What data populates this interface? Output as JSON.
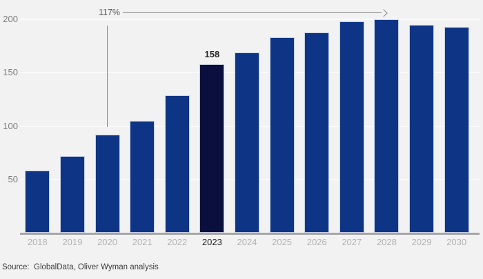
{
  "chart_data": {
    "type": "bar",
    "categories": [
      "2018",
      "2019",
      "2020",
      "2021",
      "2022",
      "2023",
      "2024",
      "2025",
      "2026",
      "2027",
      "2028",
      "2029",
      "2030"
    ],
    "values": [
      58,
      72,
      92,
      105,
      129,
      158,
      169,
      183,
      188,
      198,
      200,
      195,
      193
    ],
    "highlight": {
      "category": "2023",
      "value_label": "158"
    },
    "annotation": {
      "label": "117%",
      "from_category": "2020",
      "to_category": "2028"
    },
    "ylim": [
      0,
      200
    ],
    "yticks": [
      50,
      100,
      150,
      200
    ],
    "grid": true,
    "legend_position": "none",
    "title": "",
    "xlabel": "",
    "ylabel": ""
  },
  "source": {
    "label": "Source:",
    "text": "GlobalData, Oliver Wyman analysis"
  },
  "colors": {
    "background": "#f2f2f2",
    "bar": "#0e3585",
    "bar_highlight": "#0a0f3d",
    "gridline": "#fafafa",
    "axis_line": "#a6a6a6",
    "x_tick_label": "#b2b2b2",
    "x_tick_label_highlight": "#1f1f1f",
    "y_tick_label": "#7d7d7d",
    "annotation_text": "#555555",
    "annotation_line": "#8a8a8a",
    "source_text": "#3a3a3a"
  }
}
